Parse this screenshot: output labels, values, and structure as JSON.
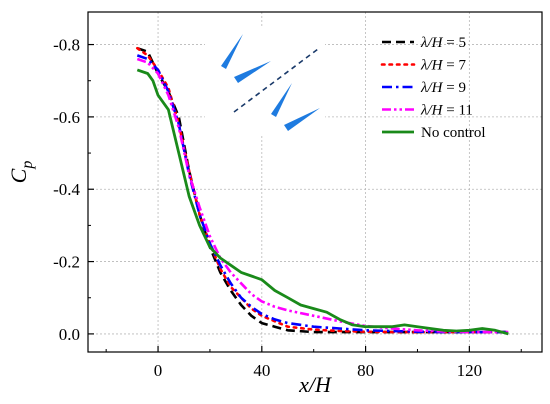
{
  "chart_data": {
    "type": "line",
    "xlabel": "x/H",
    "ylabel_main": "C",
    "ylabel_sub": "p",
    "xlim": [
      -27,
      148
    ],
    "ylim": [
      0.05,
      -0.89
    ],
    "x_ticks": [
      0,
      40,
      80,
      120
    ],
    "x_tick_labels": [
      "0",
      "40",
      "80",
      "120"
    ],
    "y_ticks": [
      -0.8,
      -0.6,
      -0.4,
      -0.2,
      0.0
    ],
    "y_tick_labels": [
      "-0.8",
      "-0.6",
      "-0.4",
      "-0.2",
      "0.0"
    ],
    "grid": true,
    "legend_position": "top-right",
    "series": [
      {
        "name": "λ/H = 5",
        "label_var": "λ/H",
        "label_rest": " = 5",
        "color": "#000000",
        "dash": "long-dash",
        "x": [
          -8,
          -4,
          0,
          4,
          8,
          12,
          16,
          20,
          24,
          28,
          32,
          36,
          40,
          45,
          50,
          60,
          70,
          80,
          90,
          100,
          110,
          120,
          130,
          135
        ],
        "y": [
          -0.79,
          -0.78,
          -0.72,
          -0.67,
          -0.6,
          -0.45,
          -0.33,
          -0.24,
          -0.17,
          -0.12,
          -0.08,
          -0.05,
          -0.03,
          -0.02,
          -0.01,
          -0.005,
          -0.005,
          -0.005,
          -0.005,
          -0.005,
          -0.005,
          -0.005,
          -0.005,
          -0.005
        ]
      },
      {
        "name": "λ/H = 7",
        "label_var": "λ/H",
        "label_rest": " = 7",
        "color": "#ff0000",
        "dash": "dot",
        "x": [
          -8,
          -4,
          0,
          4,
          8,
          12,
          16,
          20,
          24,
          28,
          32,
          36,
          40,
          45,
          50,
          60,
          70,
          80,
          90,
          100,
          110,
          120,
          130,
          135
        ],
        "y": [
          -0.79,
          -0.77,
          -0.73,
          -0.68,
          -0.58,
          -0.45,
          -0.33,
          -0.25,
          -0.18,
          -0.13,
          -0.1,
          -0.07,
          -0.05,
          -0.035,
          -0.02,
          -0.012,
          -0.008,
          -0.006,
          -0.005,
          -0.005,
          -0.005,
          -0.005,
          -0.005,
          -0.005
        ]
      },
      {
        "name": "λ/H = 9",
        "label_var": "λ/H",
        "label_rest": " = 9",
        "color": "#0000ff",
        "dash": "dash-dot",
        "x": [
          -8,
          -4,
          0,
          4,
          8,
          12,
          16,
          20,
          24,
          28,
          32,
          36,
          40,
          45,
          50,
          60,
          70,
          80,
          90,
          100,
          110,
          120,
          130,
          135
        ],
        "y": [
          -0.77,
          -0.76,
          -0.73,
          -0.67,
          -0.58,
          -0.44,
          -0.33,
          -0.25,
          -0.19,
          -0.14,
          -0.1,
          -0.075,
          -0.055,
          -0.04,
          -0.03,
          -0.02,
          -0.015,
          -0.01,
          -0.008,
          -0.006,
          -0.005,
          -0.005,
          -0.005,
          -0.005
        ]
      },
      {
        "name": "λ/H = 11",
        "label_var": "λ/H",
        "label_rest": " = 11",
        "color": "#ff00ff",
        "dash": "dash-dot-dot",
        "x": [
          -8,
          -4,
          0,
          4,
          8,
          12,
          16,
          20,
          24,
          28,
          32,
          36,
          40,
          45,
          50,
          60,
          70,
          80,
          90,
          100,
          110,
          120,
          130,
          135
        ],
        "y": [
          -0.76,
          -0.75,
          -0.72,
          -0.66,
          -0.57,
          -0.44,
          -0.35,
          -0.27,
          -0.21,
          -0.17,
          -0.14,
          -0.11,
          -0.09,
          -0.075,
          -0.065,
          -0.05,
          -0.035,
          -0.022,
          -0.015,
          -0.01,
          -0.007,
          -0.005,
          -0.005,
          -0.005
        ]
      },
      {
        "name": "No control",
        "label_var": "",
        "label_rest": "No control",
        "color": "#1a8a1a",
        "dash": "solid",
        "x": [
          -8,
          -4,
          -2,
          0,
          4,
          8,
          12,
          16,
          20,
          24,
          28,
          32,
          36,
          40,
          45,
          50,
          55,
          60,
          65,
          70,
          75,
          80,
          85,
          90,
          95,
          100,
          105,
          110,
          115,
          120,
          125,
          130,
          135
        ],
        "y": [
          -0.73,
          -0.72,
          -0.7,
          -0.66,
          -0.62,
          -0.5,
          -0.38,
          -0.3,
          -0.24,
          -0.21,
          -0.19,
          -0.17,
          -0.16,
          -0.15,
          -0.12,
          -0.1,
          -0.08,
          -0.07,
          -0.06,
          -0.04,
          -0.025,
          -0.02,
          -0.02,
          -0.02,
          -0.025,
          -0.02,
          -0.015,
          -0.01,
          -0.008,
          -0.01,
          -0.015,
          -0.01,
          0.0
        ]
      }
    ]
  }
}
